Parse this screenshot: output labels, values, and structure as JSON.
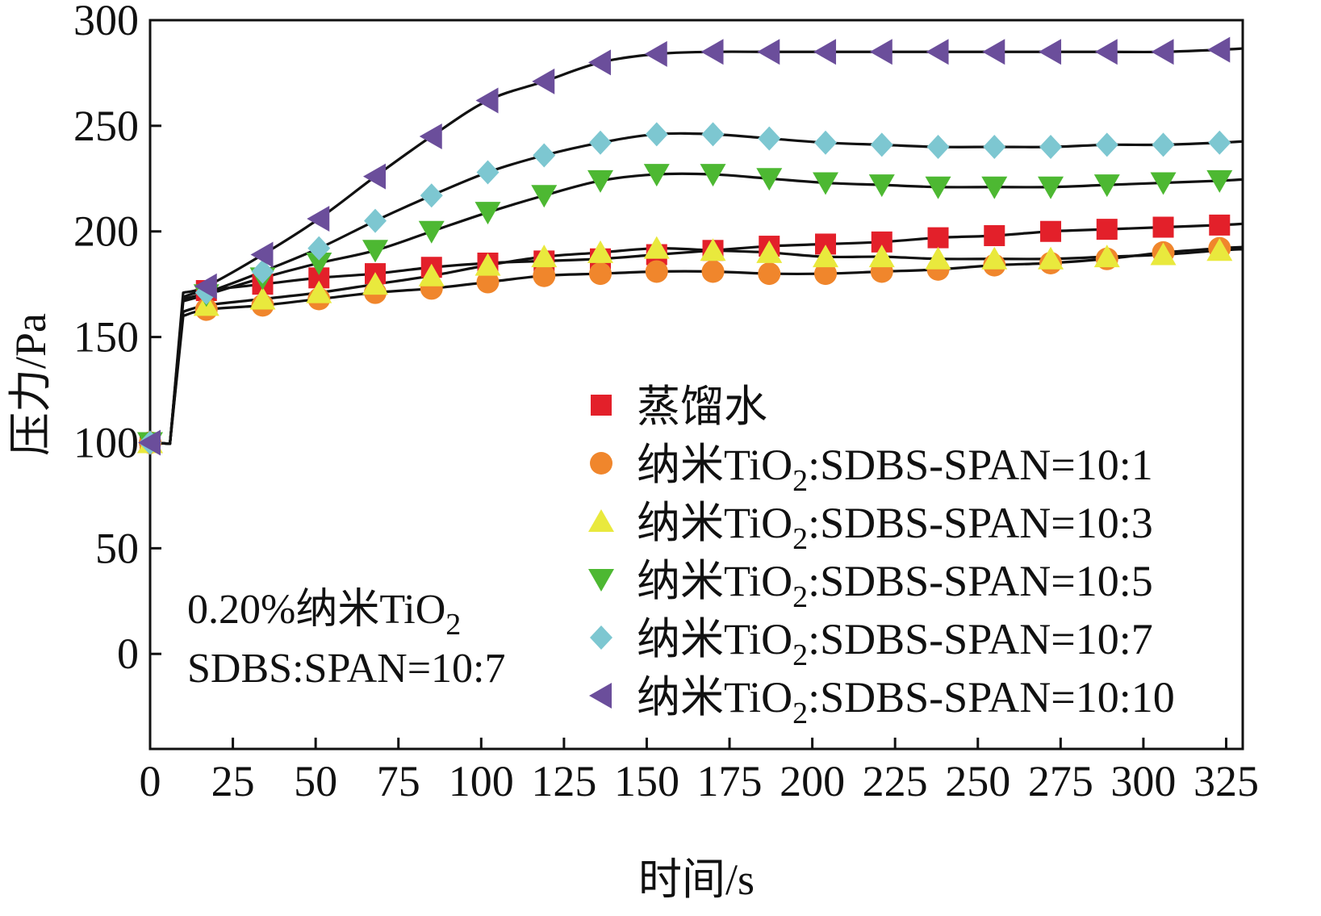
{
  "chart_data": {
    "type": "line",
    "title": "",
    "xlabel": "时间/s",
    "ylabel": "压力/Pa",
    "xlim": [
      0,
      330
    ],
    "ylim": [
      -45,
      300
    ],
    "xticks": [
      "0",
      "25",
      "50",
      "75",
      "100",
      "125",
      "150",
      "175",
      "200",
      "225",
      "250",
      "275",
      "300",
      "325"
    ],
    "yticks": [
      "0",
      "50",
      "100",
      "150",
      "200",
      "250",
      "300"
    ],
    "annotation": [
      "0.20%纳米TiO",
      "2",
      "SDBS:SPAN=10:7"
    ],
    "x": [
      0,
      17,
      34,
      51,
      68,
      85,
      102,
      119,
      136,
      153,
      170,
      187,
      204,
      221,
      238,
      255,
      272,
      289,
      306,
      323
    ],
    "series": [
      {
        "name": "蒸馏水",
        "legend": "蒸馏水",
        "subscript": "",
        "legend_suffix": "",
        "marker": "square",
        "color": "#E3202A",
        "values": [
          100,
          172,
          175,
          178,
          180,
          183,
          185,
          186,
          187,
          189,
          191,
          193,
          194,
          195,
          197,
          198,
          200,
          201,
          202,
          203
        ]
      },
      {
        "name": "纳米TiO2:SDBS-SPAN=10:1",
        "legend": "纳米TiO",
        "subscript": "2",
        "legend_suffix": ":SDBS-SPAN=10:1",
        "marker": "circle",
        "color": "#F0862C",
        "values": [
          100,
          163,
          165,
          168,
          171,
          173,
          176,
          179,
          180,
          181,
          181,
          180,
          180,
          181,
          182,
          184,
          185,
          187,
          190,
          192
        ]
      },
      {
        "name": "纳米TiO2:SDBS-SPAN=10:3",
        "legend": "纳米TiO",
        "subscript": "2",
        "legend_suffix": ":SDBS-SPAN=10:3",
        "marker": "triangle-up",
        "color": "#E9E93D",
        "values": [
          100,
          165,
          168,
          171,
          175,
          179,
          184,
          188,
          190,
          192,
          191,
          190,
          188,
          188,
          187,
          187,
          187,
          188,
          189,
          191
        ]
      },
      {
        "name": "纳米TiO2:SDBS-SPAN=10:5",
        "legend": "纳米TiO",
        "subscript": "2",
        "legend_suffix": ":SDBS-SPAN=10:5",
        "marker": "triangle-down",
        "color": "#4DB832",
        "values": [
          100,
          170,
          178,
          185,
          191,
          200,
          209,
          217,
          224,
          227,
          227,
          225,
          223,
          222,
          221,
          221,
          221,
          222,
          223,
          224
        ]
      },
      {
        "name": "纳米TiO2:SDBS-SPAN=10:7",
        "legend": "纳米TiO",
        "subscript": "2",
        "legend_suffix": ":SDBS-SPAN=10:7",
        "marker": "diamond",
        "color": "#7DC7D1",
        "values": [
          100,
          171,
          181,
          192,
          205,
          217,
          228,
          236,
          242,
          246,
          246,
          244,
          242,
          241,
          240,
          240,
          240,
          241,
          241,
          242
        ]
      },
      {
        "name": "纳米TiO2:SDBS-SPAN=10:10",
        "legend": "纳米TiO",
        "subscript": "2",
        "legend_suffix": ":SDBS-SPAN=10:10",
        "marker": "triangle-left",
        "color": "#6B4E9B",
        "values": [
          100,
          174,
          189,
          206,
          226,
          245,
          262,
          271,
          280,
          284,
          285,
          285,
          285,
          285,
          285,
          285,
          285,
          285,
          285,
          286
        ]
      }
    ]
  }
}
